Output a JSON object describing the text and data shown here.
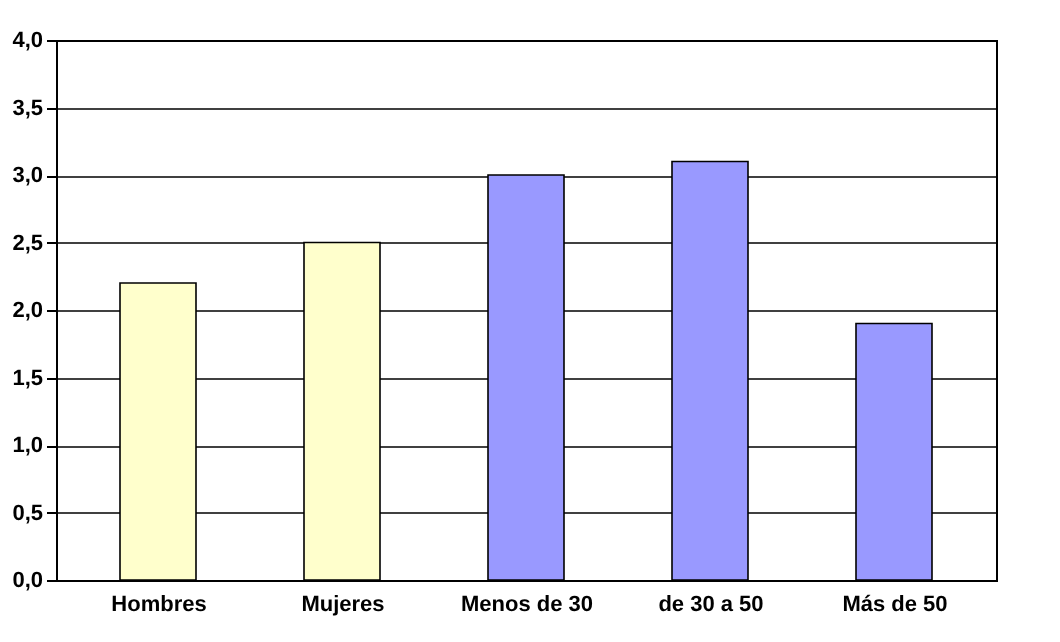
{
  "chart_data": {
    "type": "bar",
    "categories": [
      "Hombres",
      "Mujeres",
      "Menos de 30",
      "de 30 a 50",
      "Más de 50"
    ],
    "values": [
      2.2,
      2.5,
      3.0,
      3.1,
      1.9
    ],
    "colors": [
      "#ffffcc",
      "#ffffcc",
      "#9999ff",
      "#9999ff",
      "#9999ff"
    ],
    "ylim": [
      0,
      4
    ],
    "yticks": [
      {
        "value": 0,
        "label": "0,0"
      },
      {
        "value": 0.5,
        "label": "0,5"
      },
      {
        "value": 1,
        "label": "1,0"
      },
      {
        "value": 1.5,
        "label": "1,5"
      },
      {
        "value": 2,
        "label": "2,0"
      },
      {
        "value": 2.5,
        "label": "2,5"
      },
      {
        "value": 3,
        "label": "3,0"
      },
      {
        "value": 3.5,
        "label": "3,5"
      },
      {
        "value": 4,
        "label": "4,0"
      }
    ],
    "grid": "y"
  }
}
